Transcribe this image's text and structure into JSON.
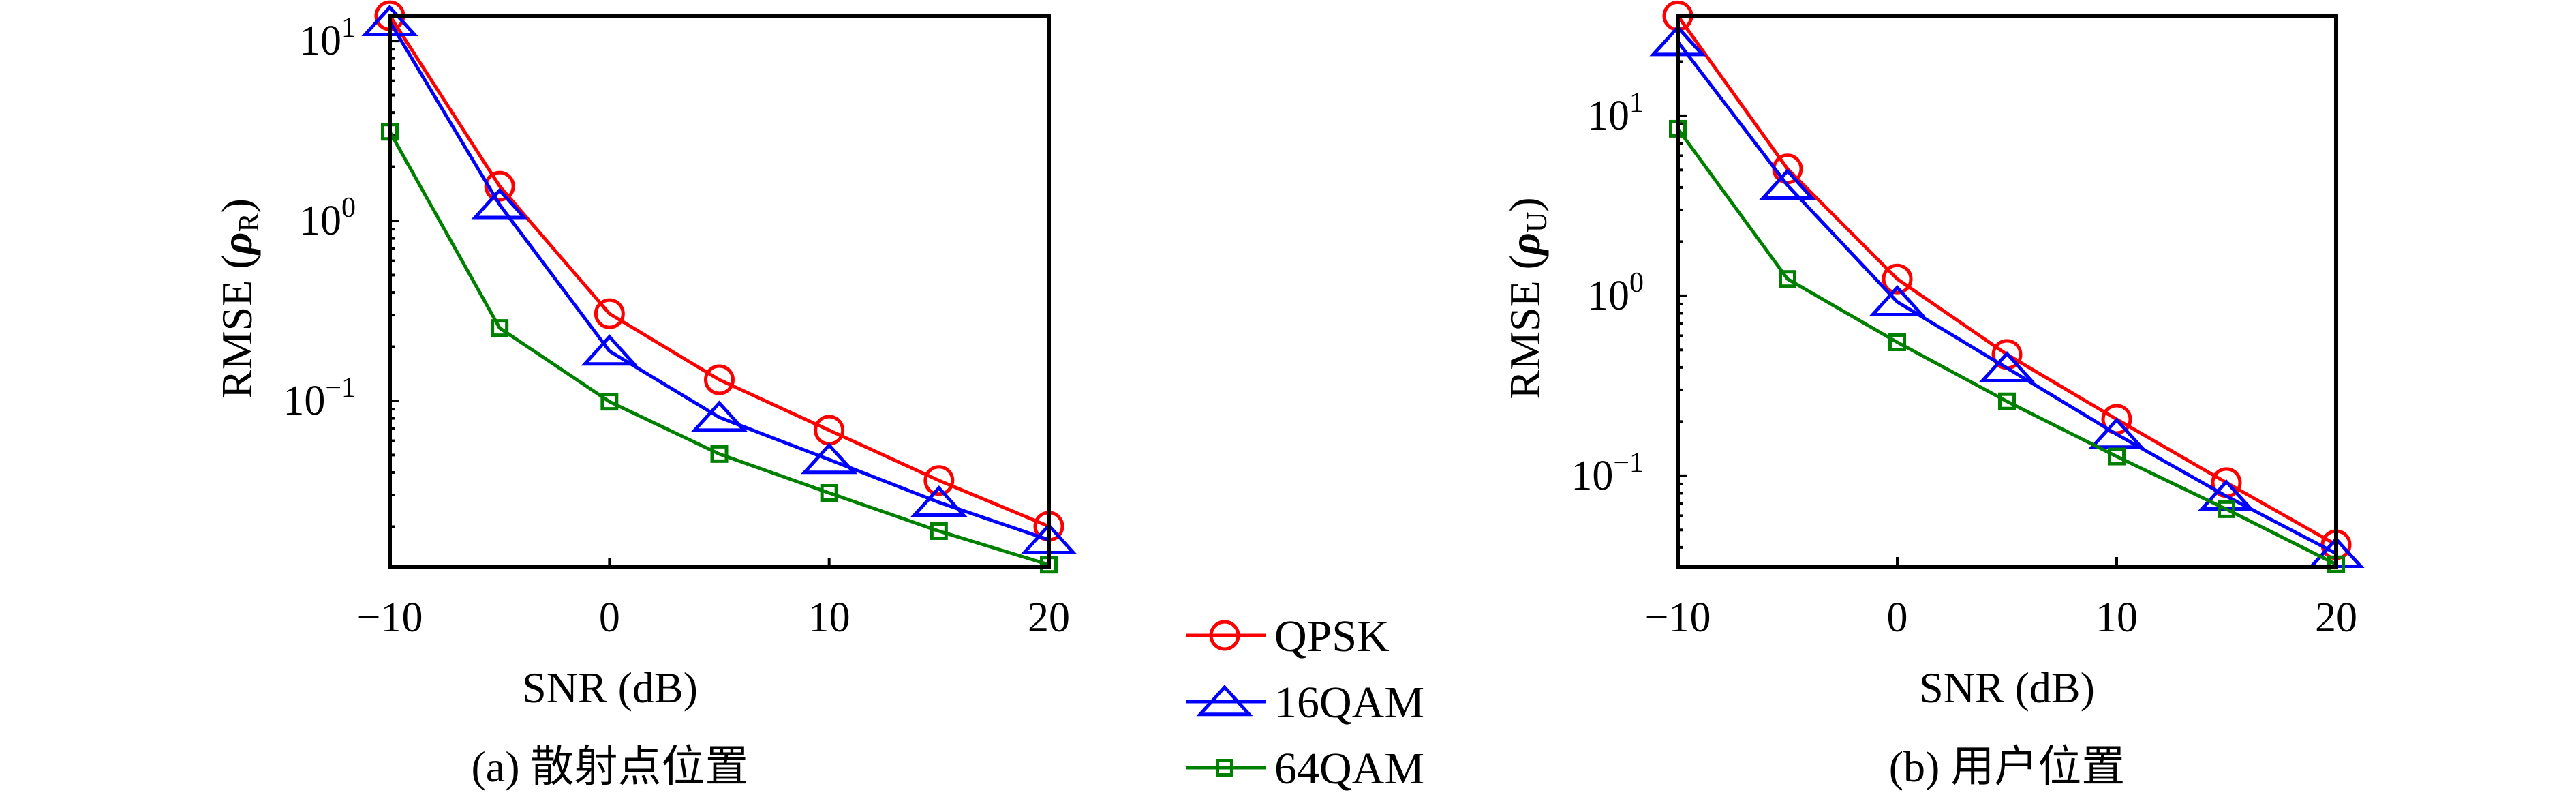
{
  "figure": {
    "legend": {
      "placement": "center-bottom",
      "entries": [
        {
          "label": "QPSK",
          "color": "#ff0000",
          "marker": "circle-icon"
        },
        {
          "label": "16QAM",
          "color": "#0000ff",
          "marker": "triangle-icon"
        },
        {
          "label": "64QAM",
          "color": "#008000",
          "marker": "square-icon"
        }
      ]
    }
  },
  "chart_data": [
    {
      "type": "line",
      "title": "",
      "caption": "(a) 散射点位置",
      "xlabel": "SNR (dB)",
      "ylabel": "RMSE (ρ_R)",
      "ylabel_main": "RMSE (",
      "ylabel_symbol": "ρ",
      "ylabel_sub": "R",
      "ylabel_close": ")",
      "yscale": "log",
      "x": [
        -10,
        -5,
        0,
        5,
        10,
        15,
        20
      ],
      "xlim": [
        -10,
        20
      ],
      "ylim": [
        0.0119,
        13.7
      ],
      "xticks": [
        -10,
        0,
        10,
        20
      ],
      "xtick_labels": [
        "−10",
        "0",
        "10",
        "20"
      ],
      "yticks": [
        {
          "value": 10,
          "base": "10",
          "exp": "1"
        },
        {
          "value": 1,
          "base": "10",
          "exp": "0"
        },
        {
          "value": 0.1,
          "base": "10",
          "exp": "−1"
        }
      ],
      "grid": false,
      "series": [
        {
          "name": "QPSK",
          "color": "#ff0000",
          "marker": "circle",
          "values": [
            13.8,
            1.56,
            0.305,
            0.131,
            0.0687,
            0.0361,
            0.0201
          ]
        },
        {
          "name": "16QAM",
          "color": "#0000ff",
          "marker": "triangle",
          "values": [
            12.8,
            1.23,
            0.189,
            0.081,
            0.0472,
            0.0273,
            0.0169
          ]
        },
        {
          "name": "64QAM",
          "color": "#008000",
          "marker": "square",
          "values": [
            3.13,
            0.254,
            0.099,
            0.0507,
            0.0308,
            0.0189,
            0.0123
          ]
        }
      ]
    },
    {
      "type": "line",
      "title": "",
      "caption": "(b) 用户位置",
      "xlabel": "SNR (dB)",
      "ylabel": "RMSE (ρ_U)",
      "ylabel_main": "RMSE (",
      "ylabel_symbol": "ρ",
      "ylabel_sub": "U",
      "ylabel_close": ")",
      "yscale": "log",
      "x": [
        -10,
        -5,
        0,
        5,
        10,
        15,
        20
      ],
      "xlim": [
        -10,
        20
      ],
      "ylim": [
        0.0313,
        35.7
      ],
      "xticks": [
        -10,
        0,
        10,
        20
      ],
      "xtick_labels": [
        "−10",
        "0",
        "10",
        "20"
      ],
      "yticks": [
        {
          "value": 10,
          "base": "10",
          "exp": "1"
        },
        {
          "value": 1,
          "base": "10",
          "exp": "0"
        },
        {
          "value": 0.1,
          "base": "10",
          "exp": "−1"
        }
      ],
      "grid": false,
      "series": [
        {
          "name": "QPSK",
          "color": "#ff0000",
          "marker": "circle",
          "values": [
            35.9,
            5.07,
            1.24,
            0.472,
            0.206,
            0.0916,
            0.0414
          ]
        },
        {
          "name": "16QAM",
          "color": "#0000ff",
          "marker": "triangle",
          "values": [
            25.8,
            4.11,
            0.925,
            0.397,
            0.17,
            0.077,
            0.037
          ]
        },
        {
          "name": "64QAM",
          "color": "#008000",
          "marker": "square",
          "values": [
            8.47,
            1.24,
            0.552,
            0.259,
            0.128,
            0.0652,
            0.0322
          ]
        }
      ]
    }
  ]
}
